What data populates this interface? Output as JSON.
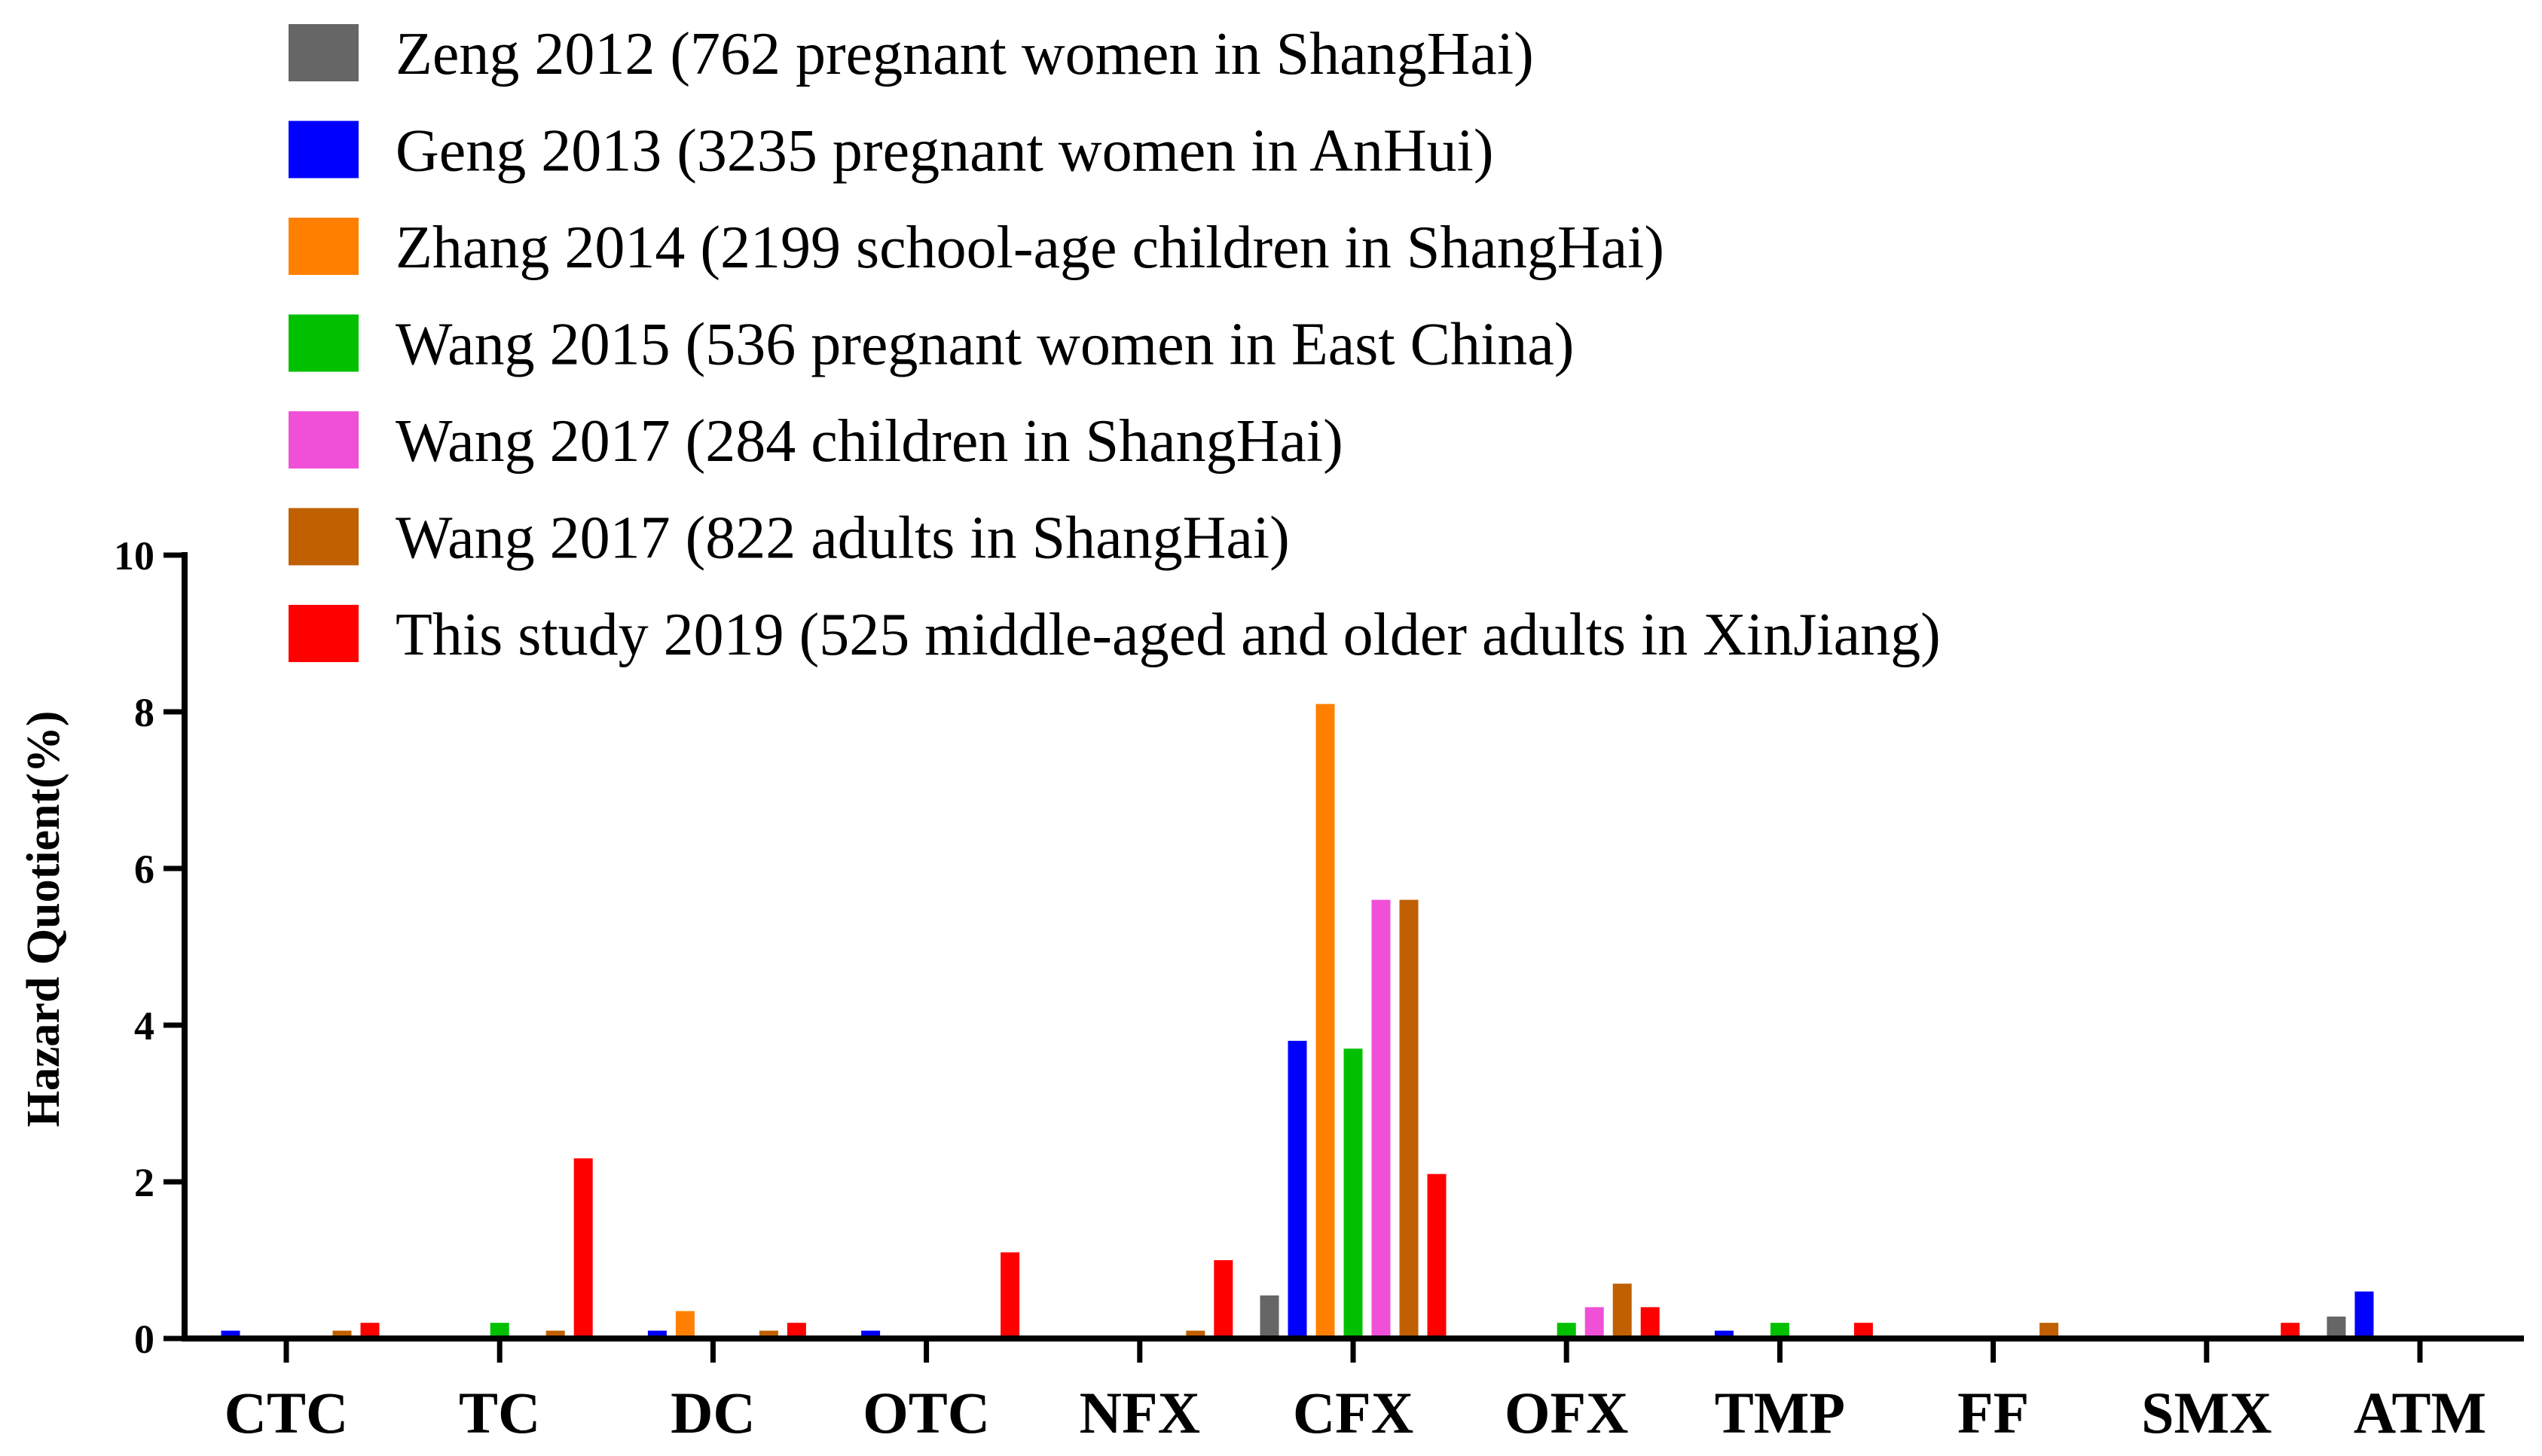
{
  "chart_data": {
    "type": "bar",
    "title": "",
    "xlabel": "",
    "ylabel": "Hazard Quotient(%)",
    "ylim": [
      0,
      10
    ],
    "yticks": [
      0,
      2,
      4,
      6,
      8,
      10
    ],
    "grid": false,
    "legend_position": "top-left",
    "categories": [
      "CTC",
      "TC",
      "DC",
      "OTC",
      "NFX",
      "CFX",
      "OFX",
      "TMP",
      "FF",
      "SMX",
      "ATM"
    ],
    "series": [
      {
        "name": "Zeng 2012 (762 pregnant women in ShangHai)",
        "color": "#666666",
        "values": [
          0,
          0,
          0,
          0,
          0,
          0.55,
          0,
          0,
          0,
          0,
          0.28
        ]
      },
      {
        "name": "Geng 2013 (3235 pregnant women in AnHui)",
        "color": "#0000ff",
        "values": [
          0.1,
          0,
          0.1,
          0.1,
          0,
          3.8,
          0,
          0.1,
          0,
          0,
          0.6
        ]
      },
      {
        "name": "Zhang 2014 (2199 school-age children in ShangHai)",
        "color": "#ff8000",
        "values": [
          0,
          0,
          0.35,
          0,
          0,
          8.1,
          0,
          0,
          0,
          0,
          0
        ]
      },
      {
        "name": "Wang 2015 (536 pregnant women in East China)",
        "color": "#00c000",
        "values": [
          0,
          0.2,
          0,
          0,
          0,
          3.7,
          0.2,
          0.2,
          0,
          0,
          0
        ]
      },
      {
        "name": "Wang 2017 (284 children in ShangHai)",
        "color": "#f050d8",
        "values": [
          0,
          0,
          0,
          0,
          0,
          5.6,
          0.4,
          0,
          0,
          0,
          0
        ]
      },
      {
        "name": "Wang 2017 (822 adults in ShangHai)",
        "color": "#c06000",
        "values": [
          0.1,
          0.1,
          0.1,
          0,
          0.1,
          5.6,
          0.7,
          0,
          0.2,
          0,
          0
        ]
      },
      {
        "name": "This study 2019 (525 middle-aged and older adults in XinJiang)",
        "color": "#ff0000",
        "values": [
          0.2,
          2.3,
          0.2,
          1.1,
          1.0,
          2.1,
          0.4,
          0.2,
          0,
          0.2,
          0
        ]
      }
    ]
  }
}
